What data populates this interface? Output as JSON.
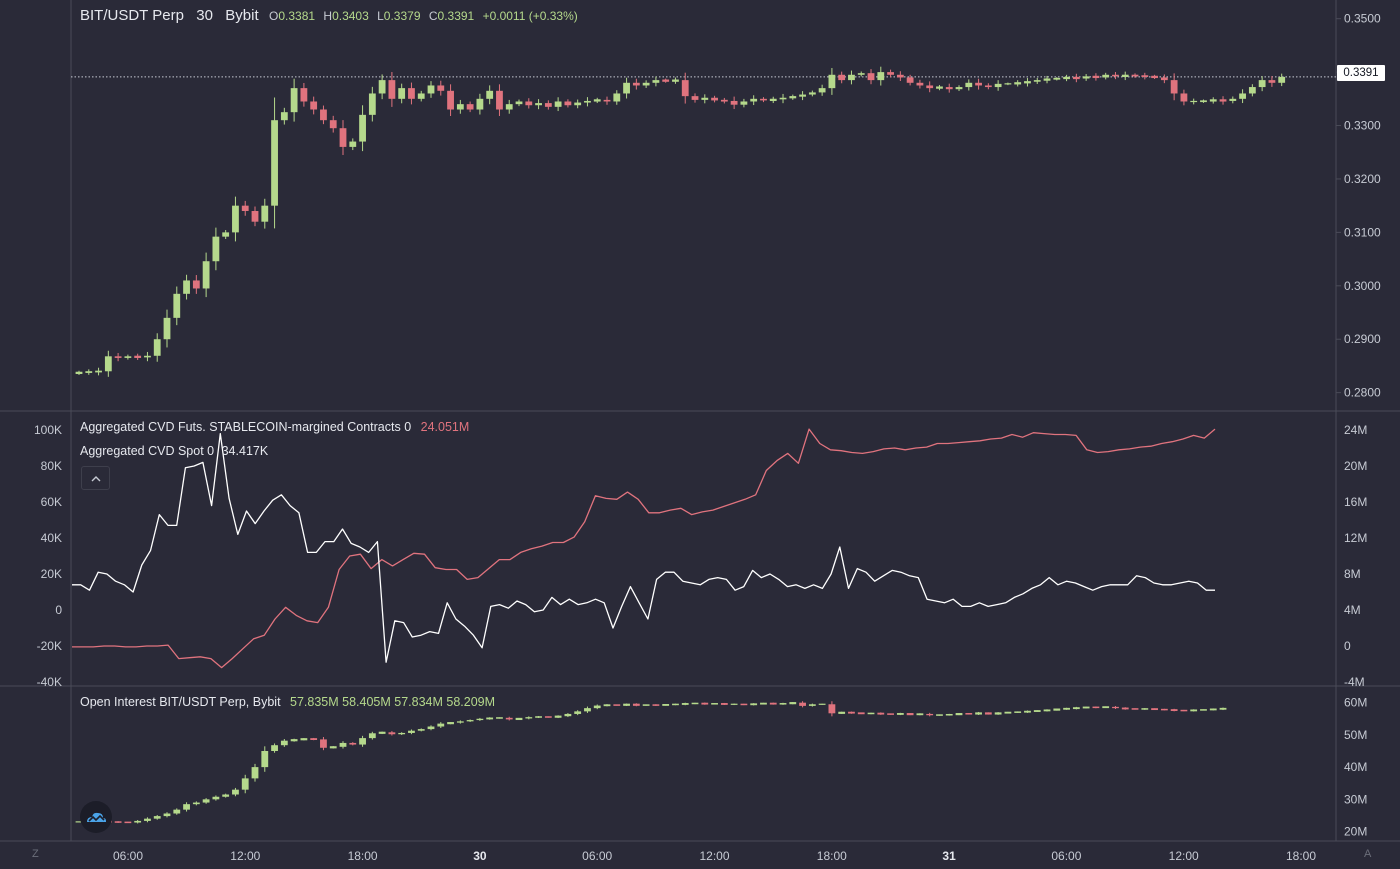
{
  "header": {
    "symbol": "BIT/USDT Perp",
    "interval": "30",
    "exchange": "Bybit",
    "ohlc": {
      "o_label": "O",
      "o": "0.3381",
      "h_label": "H",
      "h": "0.3403",
      "l_label": "L",
      "l": "0.3379",
      "c_label": "C",
      "c": "0.3391",
      "change": "+0.0011 (+0.33%)"
    },
    "last_price_tag": "0.3391"
  },
  "cvd_legend": {
    "futs_label": "Aggregated CVD Futs. STABLECOIN-margined Contracts 0",
    "futs_value": "24.051M",
    "spot_label": "Aggregated CVD Spot 0",
    "spot_value": "34.417K",
    "collapse_icon": "chevron-up-icon"
  },
  "oi_legend": {
    "label": "Open Interest BIT/USDT Perp, Bybit",
    "values": "57.835M  58.405M  57.834M  58.209M"
  },
  "corner_left": "Z",
  "corner_right": "A",
  "colors": {
    "background": "#2a2a38",
    "up": "#b5d98c",
    "down": "#e0737e",
    "spot_line": "#ffffff",
    "grid": "#4a4b58"
  },
  "chart_data": [
    {
      "type": "candlestick",
      "title": "BIT/USDT Perp 30 Bybit",
      "x_tick_labels": [
        "06:00",
        "12:00",
        "18:00",
        "30",
        "06:00",
        "12:00",
        "18:00",
        "31",
        "06:00",
        "12:00",
        "18:00"
      ],
      "y_tick_labels": [
        "0.3500",
        "0.3400",
        "0.3300",
        "0.3200",
        "0.3100",
        "0.3000",
        "0.2900",
        "0.2800"
      ],
      "ylim": [
        0.2775,
        0.352
      ],
      "last_price": 0.3391,
      "close": [
        0.2838,
        0.2839,
        0.284,
        0.2868,
        0.2865,
        0.2868,
        0.2866,
        0.2869,
        0.29,
        0.294,
        0.2985,
        0.301,
        0.2995,
        0.3046,
        0.3092,
        0.31,
        0.315,
        0.314,
        0.312,
        0.315,
        0.331,
        0.3325,
        0.337,
        0.3345,
        0.333,
        0.331,
        0.3295,
        0.326,
        0.327,
        0.332,
        0.336,
        0.3385,
        0.335,
        0.337,
        0.335,
        0.336,
        0.3375,
        0.3365,
        0.333,
        0.334,
        0.333,
        0.335,
        0.3365,
        0.333,
        0.334,
        0.3345,
        0.3338,
        0.3342,
        0.3335,
        0.3345,
        0.3338,
        0.3343,
        0.3346,
        0.3348,
        0.3345,
        0.336,
        0.338,
        0.3375,
        0.338,
        0.3385,
        0.3383,
        0.3385,
        0.3355,
        0.3348,
        0.3352,
        0.3347,
        0.3346,
        0.3339,
        0.3345,
        0.335,
        0.3347,
        0.3349,
        0.3352,
        0.3354,
        0.3358,
        0.3362,
        0.337,
        0.3395,
        0.3385,
        0.3395,
        0.3398,
        0.3385,
        0.34,
        0.3395,
        0.339,
        0.338,
        0.3375,
        0.337,
        0.3372,
        0.3368,
        0.3372,
        0.338,
        0.3375,
        0.3372,
        0.3378,
        0.3378,
        0.338,
        0.3382,
        0.3385,
        0.3387,
        0.3388,
        0.339,
        0.3388,
        0.3392,
        0.339,
        0.3395,
        0.3392,
        0.3394,
        0.3393,
        0.3392,
        0.339,
        0.3385,
        0.336,
        0.3345,
        0.3345,
        0.3346,
        0.3348,
        0.3346,
        0.335,
        0.336,
        0.3372,
        0.3385,
        0.338,
        0.3391
      ],
      "series": [
        {
          "name": "Aggregated CVD Futs. STABLECOIN-margined Contracts 0",
          "axis": "right",
          "unit": "M",
          "y_tick_labels": [
            "24M",
            "20M",
            "16M",
            "12M",
            "8M",
            "4M",
            "0",
            "-4M"
          ],
          "values": [
            -0.1,
            -0.1,
            -0.1,
            0.0,
            0.0,
            -0.1,
            -0.1,
            0.0,
            0.0,
            0.1,
            -1.4,
            -1.3,
            -1.2,
            -1.4,
            -2.4,
            -1.4,
            -0.3,
            0.8,
            1.2,
            3.0,
            4.3,
            3.4,
            2.8,
            2.6,
            4.3,
            8.5,
            10.0,
            10.2,
            8.6,
            9.6,
            8.9,
            9.6,
            10.3,
            10.2,
            8.7,
            8.5,
            8.5,
            7.4,
            7.6,
            8.6,
            9.6,
            9.6,
            10.4,
            10.8,
            11.1,
            11.5,
            11.5,
            12.1,
            13.8,
            16.7,
            16.4,
            16.3,
            17.1,
            16.3,
            14.8,
            14.8,
            15.1,
            15.3,
            14.6,
            14.9,
            15.1,
            15.5,
            15.9,
            16.3,
            16.8,
            19.5,
            20.6,
            21.4,
            20.3,
            24.1,
            22.5,
            21.8,
            21.7,
            21.5,
            21.4,
            21.6,
            21.9,
            22.0,
            21.8,
            22.0,
            22.1,
            22.5,
            22.5,
            22.6,
            22.7,
            22.8,
            23.0,
            23.1,
            23.5,
            23.2,
            23.7,
            23.6,
            23.5,
            23.5,
            23.4,
            21.8,
            21.5,
            21.6,
            21.8,
            21.9,
            22.1,
            22.2,
            22.5,
            22.7,
            23.0,
            23.4,
            23.1,
            24.1
          ]
        },
        {
          "name": "Aggregated CVD Spot 0",
          "axis": "left",
          "unit": "K",
          "y_tick_labels": [
            "100K",
            "80K",
            "60K",
            "40K",
            "20K",
            "0",
            "-20K",
            "-40K"
          ],
          "values": [
            14,
            14,
            11,
            21,
            20,
            16,
            14,
            10,
            25,
            33,
            53,
            47,
            47,
            79,
            80,
            82,
            58,
            98,
            62,
            42,
            55,
            48,
            55,
            61,
            64,
            58,
            54,
            32,
            32,
            38,
            38,
            45,
            37,
            35,
            32,
            38,
            -29,
            -6,
            -7,
            -15,
            -14,
            -12,
            -13,
            4,
            -5,
            -9,
            -14,
            -21,
            2,
            3,
            1,
            5,
            3,
            -1,
            0,
            7,
            3,
            6,
            3,
            4,
            6,
            4,
            -10,
            2,
            13,
            4,
            -5,
            17,
            21,
            21,
            16,
            15,
            14,
            17,
            18,
            17,
            11,
            13,
            22,
            18,
            20,
            17,
            13,
            14,
            12,
            14,
            12,
            20,
            35,
            12,
            23,
            21,
            16,
            19,
            22,
            21,
            19,
            18,
            6,
            5,
            4,
            6,
            2,
            2,
            4,
            2,
            3,
            4,
            7,
            9,
            12,
            14,
            18,
            14,
            16,
            15,
            13,
            11,
            13,
            14,
            14,
            14,
            19,
            18,
            15,
            14,
            14,
            15,
            16,
            15,
            11,
            11
          ]
        }
      ],
      "ylim_left": [
        -40,
        100
      ],
      "ylim_right": [
        -4,
        24
      ]
    },
    {
      "type": "candlestick",
      "title": "Open Interest BIT/USDT Perp, Bybit",
      "y_tick_labels": [
        "60M",
        "50M",
        "40M",
        "30M",
        "20M"
      ],
      "ylim": [
        18,
        63
      ],
      "close": [
        23.0,
        23.1,
        23.2,
        23.0,
        22.9,
        22.8,
        23.3,
        24.0,
        24.8,
        25.6,
        26.8,
        28.5,
        29.0,
        30.0,
        30.8,
        31.5,
        33.0,
        36.5,
        40.0,
        45.0,
        46.8,
        48.2,
        48.5,
        48.8,
        48.6,
        46.0,
        46.3,
        47.5,
        47.0,
        49.0,
        50.5,
        50.8,
        50.2,
        50.6,
        51.3,
        51.8,
        52.6,
        53.5,
        53.8,
        54.2,
        54.6,
        55.0,
        55.2,
        55.3,
        54.8,
        55.1,
        55.5,
        55.6,
        55.5,
        55.8,
        56.5,
        57.3,
        58.3,
        59.1,
        59.3,
        59.2,
        59.5,
        59.2,
        59.3,
        59.2,
        59.4,
        59.5,
        59.7,
        59.8,
        59.6,
        59.7,
        59.5,
        59.5,
        59.4,
        59.6,
        59.8,
        59.6,
        59.7,
        60.0,
        59.0,
        59.5,
        59.5,
        56.7,
        57.0,
        56.8,
        56.6,
        56.7,
        56.5,
        56.4,
        56.6,
        56.3,
        56.5,
        56.1,
        56.2,
        56.3,
        56.6,
        56.5,
        56.8,
        56.5,
        56.8,
        57.0,
        57.1,
        57.3,
        57.5,
        57.7,
        58.0,
        58.2,
        58.4,
        58.6,
        58.5,
        58.7,
        58.3,
        58.1,
        58.0,
        58.1,
        57.9,
        57.8,
        57.6,
        57.5,
        57.7,
        57.8,
        58.0,
        58.2
      ]
    }
  ]
}
